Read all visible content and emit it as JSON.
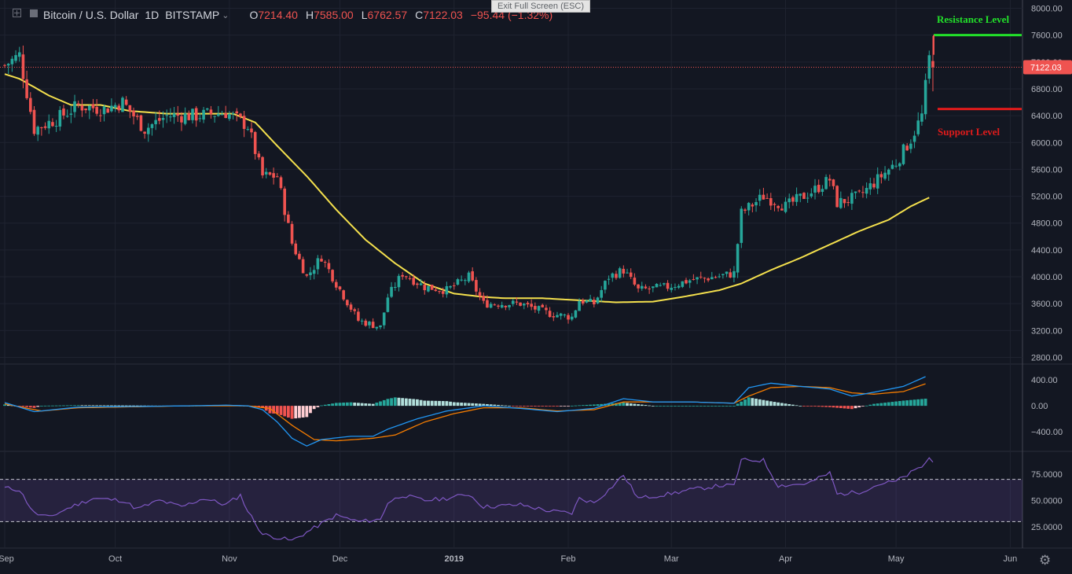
{
  "header": {
    "symbol": "Bitcoin / U.S. Dollar",
    "interval": "1D",
    "exchange": "BITSTAMP",
    "open_label": "O",
    "open": "7214.40",
    "high_label": "H",
    "high": "7585.00",
    "low_label": "L",
    "low": "6762.57",
    "close_label": "C",
    "close": "7122.03",
    "change": "−95.44 (−1.32%)"
  },
  "fullscreen_tip": "Exit Full Screen (ESC)",
  "colors": {
    "up": "#26a69a",
    "down": "#ef5350",
    "ma": "#f4e04d",
    "macd": "#2196f3",
    "signal": "#f57c00",
    "rsi": "#7e57c2",
    "resistance": "#22e02a",
    "support": "#e01b1b"
  },
  "chart_data": [
    {
      "type": "candlestick",
      "title": "Bitcoin / U.S. Dollar, 1D, BITSTAMP",
      "ylim": [
        2700,
        8100
      ],
      "y_ticks": [
        2800,
        3200,
        3600,
        4000,
        4400,
        4800,
        5200,
        5600,
        6000,
        6400,
        6800,
        7200,
        7600,
        8000
      ],
      "y_tick_labels": [
        "2800.00",
        "3200.00",
        "3600.00",
        "4000.00",
        "4400.00",
        "4800.00",
        "5200.00",
        "5600.00",
        "6000.00",
        "6400.00",
        "6800.00",
        "7200.00",
        "7600.00",
        "8000.00"
      ],
      "x_tick_labels": [
        "Sep",
        "Oct",
        "Nov",
        "Dec",
        "2019",
        "Feb",
        "Mar",
        "Apr",
        "May",
        "Jun"
      ],
      "last_price_label": "7122.03",
      "annotations": [
        {
          "text": "Resistance Level",
          "price": 7600
        },
        {
          "text": "Support Level",
          "price": 6500
        }
      ],
      "price_anchors": [
        [
          0,
          7150
        ],
        [
          4,
          7300
        ],
        [
          8,
          6200
        ],
        [
          14,
          6350
        ],
        [
          20,
          6550
        ],
        [
          27,
          6500
        ],
        [
          32,
          6600
        ],
        [
          38,
          6200
        ],
        [
          44,
          6400
        ],
        [
          52,
          6400
        ],
        [
          60,
          6450
        ],
        [
          66,
          6250
        ],
        [
          70,
          5500
        ],
        [
          74,
          5500
        ],
        [
          78,
          4500
        ],
        [
          82,
          4000
        ],
        [
          86,
          4300
        ],
        [
          90,
          3900
        ],
        [
          96,
          3350
        ],
        [
          102,
          3250
        ],
        [
          104,
          3700
        ],
        [
          108,
          4050
        ],
        [
          114,
          3850
        ],
        [
          120,
          3800
        ],
        [
          126,
          4000
        ],
        [
          130,
          3600
        ],
        [
          140,
          3600
        ],
        [
          148,
          3450
        ],
        [
          154,
          3400
        ],
        [
          156,
          3650
        ],
        [
          160,
          3600
        ],
        [
          164,
          4000
        ],
        [
          168,
          4100
        ],
        [
          172,
          3800
        ],
        [
          180,
          3850
        ],
        [
          186,
          3950
        ],
        [
          193,
          4000
        ],
        [
          198,
          4050
        ],
        [
          200,
          4950
        ],
        [
          206,
          5200
        ],
        [
          212,
          5050
        ],
        [
          220,
          5300
        ],
        [
          224,
          5450
        ],
        [
          226,
          5100
        ],
        [
          232,
          5200
        ],
        [
          238,
          5500
        ],
        [
          242,
          5700
        ],
        [
          246,
          6050
        ],
        [
          249,
          6400
        ],
        [
          251,
          7250
        ],
        [
          252,
          7122
        ]
      ],
      "moving_average_anchors": [
        [
          0,
          7020
        ],
        [
          4,
          6950
        ],
        [
          12,
          6700
        ],
        [
          18,
          6560
        ],
        [
          26,
          6560
        ],
        [
          34,
          6470
        ],
        [
          44,
          6430
        ],
        [
          56,
          6430
        ],
        [
          62,
          6430
        ],
        [
          68,
          6300
        ],
        [
          74,
          5950
        ],
        [
          82,
          5500
        ],
        [
          90,
          5000
        ],
        [
          98,
          4550
        ],
        [
          106,
          4200
        ],
        [
          114,
          3900
        ],
        [
          122,
          3750
        ],
        [
          130,
          3700
        ],
        [
          136,
          3680
        ],
        [
          146,
          3680
        ],
        [
          156,
          3650
        ],
        [
          166,
          3620
        ],
        [
          176,
          3630
        ],
        [
          184,
          3700
        ],
        [
          194,
          3800
        ],
        [
          200,
          3900
        ],
        [
          208,
          4100
        ],
        [
          216,
          4280
        ],
        [
          224,
          4480
        ],
        [
          232,
          4680
        ],
        [
          240,
          4850
        ],
        [
          246,
          5050
        ],
        [
          251,
          5180
        ]
      ]
    },
    {
      "type": "line",
      "title": "MACD",
      "ylim": [
        -690,
        620
      ],
      "y_ticks": [
        400,
        0,
        -400
      ],
      "y_tick_labels": [
        "400.00",
        "0.00",
        "−400.00"
      ],
      "macd_anchors": [
        [
          0,
          50
        ],
        [
          8,
          -90
        ],
        [
          20,
          -20
        ],
        [
          50,
          0
        ],
        [
          60,
          10
        ],
        [
          66,
          0
        ],
        [
          70,
          -60
        ],
        [
          74,
          -250
        ],
        [
          78,
          -500
        ],
        [
          82,
          -620
        ],
        [
          86,
          -520
        ],
        [
          94,
          -470
        ],
        [
          100,
          -470
        ],
        [
          104,
          -360
        ],
        [
          112,
          -200
        ],
        [
          120,
          -80
        ],
        [
          130,
          0
        ],
        [
          140,
          -40
        ],
        [
          150,
          -90
        ],
        [
          160,
          -40
        ],
        [
          168,
          110
        ],
        [
          176,
          60
        ],
        [
          186,
          60
        ],
        [
          198,
          40
        ],
        [
          202,
          280
        ],
        [
          208,
          350
        ],
        [
          216,
          300
        ],
        [
          224,
          260
        ],
        [
          230,
          150
        ],
        [
          236,
          210
        ],
        [
          244,
          300
        ],
        [
          250,
          450
        ]
      ],
      "signal_anchors": [
        [
          0,
          30
        ],
        [
          10,
          -80
        ],
        [
          20,
          -30
        ],
        [
          50,
          0
        ],
        [
          66,
          0
        ],
        [
          72,
          -40
        ],
        [
          78,
          -300
        ],
        [
          84,
          -520
        ],
        [
          90,
          -540
        ],
        [
          100,
          -500
        ],
        [
          106,
          -450
        ],
        [
          114,
          -250
        ],
        [
          122,
          -120
        ],
        [
          130,
          -30
        ],
        [
          140,
          -30
        ],
        [
          150,
          -80
        ],
        [
          160,
          -60
        ],
        [
          168,
          60
        ],
        [
          176,
          60
        ],
        [
          186,
          60
        ],
        [
          198,
          40
        ],
        [
          202,
          150
        ],
        [
          208,
          280
        ],
        [
          216,
          300
        ],
        [
          224,
          280
        ],
        [
          230,
          200
        ],
        [
          236,
          180
        ],
        [
          244,
          220
        ],
        [
          250,
          340
        ]
      ]
    },
    {
      "type": "line",
      "title": "RSI",
      "ylim": [
        5,
        95
      ],
      "y_ticks": [
        75,
        50,
        25
      ],
      "y_tick_labels": [
        "75.0000",
        "50.0000",
        "25.0000"
      ],
      "bands": [
        70,
        30
      ],
      "rsi_anchors": [
        [
          0,
          62
        ],
        [
          4,
          60
        ],
        [
          8,
          38
        ],
        [
          12,
          34
        ],
        [
          18,
          44
        ],
        [
          24,
          52
        ],
        [
          32,
          50
        ],
        [
          36,
          42
        ],
        [
          42,
          50
        ],
        [
          48,
          44
        ],
        [
          54,
          52
        ],
        [
          60,
          46
        ],
        [
          64,
          55
        ],
        [
          66,
          40
        ],
        [
          70,
          18
        ],
        [
          74,
          15
        ],
        [
          78,
          12
        ],
        [
          82,
          20
        ],
        [
          86,
          28
        ],
        [
          90,
          36
        ],
        [
          96,
          30
        ],
        [
          102,
          32
        ],
        [
          104,
          48
        ],
        [
          108,
          55
        ],
        [
          114,
          50
        ],
        [
          120,
          52
        ],
        [
          126,
          56
        ],
        [
          130,
          44
        ],
        [
          140,
          46
        ],
        [
          148,
          40
        ],
        [
          154,
          38
        ],
        [
          156,
          52
        ],
        [
          160,
          48
        ],
        [
          164,
          60
        ],
        [
          168,
          74
        ],
        [
          172,
          52
        ],
        [
          180,
          56
        ],
        [
          186,
          60
        ],
        [
          194,
          64
        ],
        [
          198,
          64
        ],
        [
          200,
          88
        ],
        [
          206,
          88
        ],
        [
          210,
          64
        ],
        [
          218,
          66
        ],
        [
          224,
          76
        ],
        [
          226,
          56
        ],
        [
          232,
          58
        ],
        [
          238,
          66
        ],
        [
          242,
          68
        ],
        [
          246,
          76
        ],
        [
          249,
          82
        ],
        [
          251,
          90
        ],
        [
          252,
          86
        ]
      ]
    }
  ]
}
